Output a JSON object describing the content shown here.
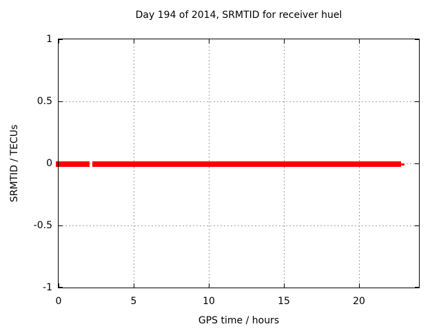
{
  "chart_data": {
    "type": "line",
    "title": "Day 194 of 2014, SRMTID for receiver huel",
    "xlabel": "GPS time / hours",
    "ylabel": "SRMTID / TECUs",
    "xlim": [
      0,
      24
    ],
    "ylim": [
      -1,
      1
    ],
    "xticks": [
      0,
      5,
      10,
      15,
      20
    ],
    "xtick_labels": [
      "0",
      "5",
      "10",
      "15",
      "20"
    ],
    "yticks": [
      1,
      0.5,
      0,
      -0.5,
      -1
    ],
    "ytick_labels": [
      "1",
      "0.5",
      "0",
      "-0.5",
      "-1"
    ],
    "grid_xticks": [
      5,
      10,
      15,
      20
    ],
    "grid_yticks": [
      0.5,
      0,
      -0.5
    ],
    "grid_style": "dotted",
    "legend": "none",
    "colors": {
      "series": "#ff0000",
      "grid": "#9e9e9e",
      "axis": "#000000",
      "background": "#ffffff",
      "text": "#000000"
    },
    "series": [
      {
        "name": "SRMTID",
        "y_value": 0,
        "color": "#ff0000",
        "line_thickness_px": 8,
        "segments_hours": [
          [
            -0.2,
            2.06
          ],
          [
            2.24,
            22.81
          ]
        ],
        "thin_tail_hours": [
          22.81,
          23.05
        ]
      }
    ]
  }
}
